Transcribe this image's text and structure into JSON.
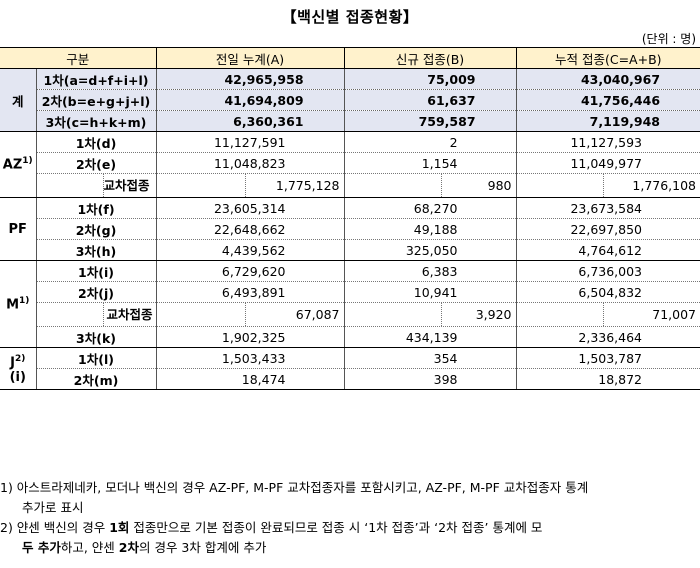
{
  "title": "【백신별 접종현황】",
  "unit": "(단위 : 명)",
  "header": {
    "group": "구분",
    "col_a": "전일 누계(A)",
    "col_b": "신규 접종(B)",
    "col_c": "누적 접종(C=A+B)"
  },
  "total": {
    "group": "계",
    "rows": [
      {
        "label": "1차(a=d+f+i+l)",
        "a": "42,965,958",
        "b": "75,009",
        "c": "43,040,967"
      },
      {
        "label": "2차(b=e+g+j+l)",
        "a": "41,694,809",
        "b": "61,637",
        "c": "41,756,446"
      },
      {
        "label": "3차(c=h+k+m)",
        "a": "6,360,361",
        "b": "759,587",
        "c": "7,119,948"
      }
    ]
  },
  "az": {
    "group": "AZ",
    "sup": "1)",
    "rows": [
      {
        "label": "1차(d)",
        "a": "11,127,591",
        "b": "2",
        "c": "11,127,593"
      },
      {
        "label": "2차(e)",
        "a": "11,048,823",
        "b": "1,154",
        "c": "11,049,977"
      }
    ],
    "cross": {
      "label": "교차접종",
      "a": "1,775,128",
      "b": "980",
      "c": "1,776,108"
    }
  },
  "pf": {
    "group": "PF",
    "rows": [
      {
        "label": "1차(f)",
        "a": "23,605,314",
        "b": "68,270",
        "c": "23,673,584"
      },
      {
        "label": "2차(g)",
        "a": "22,648,662",
        "b": "49,188",
        "c": "22,697,850"
      },
      {
        "label": "3차(h)",
        "a": "4,439,562",
        "b": "325,050",
        "c": "4,764,612"
      }
    ]
  },
  "m": {
    "group": "M",
    "sup": "1)",
    "rows": [
      {
        "label": "1차(i)",
        "a": "6,729,620",
        "b": "6,383",
        "c": "6,736,003"
      },
      {
        "label": "2차(j)",
        "a": "6,493,891",
        "b": "10,941",
        "c": "6,504,832"
      }
    ],
    "cross": {
      "label": "교차접종",
      "a": "67,087",
      "b": "3,920",
      "c": "71,007"
    },
    "row3": {
      "label": "3차(k)",
      "a": "1,902,325",
      "b": "434,139",
      "c": "2,336,464"
    }
  },
  "j": {
    "group": "J",
    "sup": "2)",
    "group2": "(i)",
    "rows": [
      {
        "label": "1차(l)",
        "a": "1,503,433",
        "b": "354",
        "c": "1,503,787"
      },
      {
        "label": "2차(m)",
        "a": "18,474",
        "b": "398",
        "c": "18,872"
      }
    ]
  },
  "notes": {
    "n1_line1": "1) 아스트라제네카, 모더나 백신의 경우 AZ-PF, M-PF 교차접종자를 포함시키고, AZ-PF, M-PF 교차접종자 통계",
    "n1_line2": "추가로 표시",
    "n2_pre": "2) 얀센 백신의 경우 ",
    "n2_bold1": "1회",
    "n2_mid": " 접종만으로 기본 접종이 완료되므로 접종 시 ‘1차 접종’과 ‘2차 접종’ 통계에 모",
    "n2_line2_pre": "두 추가",
    "n2_line2_mid": "하고, 얀센 ",
    "n2_line2_bold": "2차",
    "n2_line2_post": "의 경우 3차 합계에 추가"
  }
}
